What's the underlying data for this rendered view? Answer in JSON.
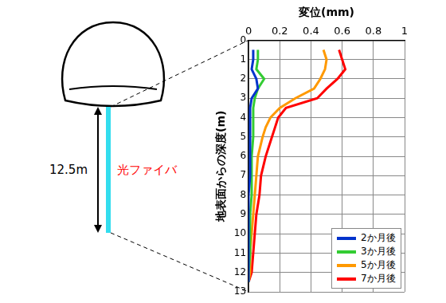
{
  "chart_data": {
    "type": "line",
    "x_label": "変位(mm)",
    "y_label": "地表面からの深度(m)",
    "y": [
      0.5,
      1,
      1.5,
      2,
      2.5,
      3,
      3.5,
      4,
      4.5,
      5,
      6,
      7,
      8,
      9,
      10,
      11,
      12,
      12.5
    ],
    "series": [
      {
        "name": "2か月後",
        "color": "#0033cc",
        "values": [
          0.03,
          0.03,
          0.02,
          0.05,
          0.06,
          0.02,
          0.01,
          0.01,
          0.01,
          0.01,
          0.01,
          0.01,
          0.0,
          0.0,
          0.0,
          0.0,
          0.0,
          0.0
        ]
      },
      {
        "name": "3か月後",
        "color": "#33cc33",
        "values": [
          0.06,
          0.06,
          0.05,
          0.1,
          0.06,
          0.04,
          0.03,
          0.03,
          0.03,
          0.03,
          0.02,
          0.02,
          0.02,
          0.01,
          0.01,
          0.01,
          0.0,
          0.0
        ]
      },
      {
        "name": "5か月後",
        "color": "#ff9900",
        "values": [
          0.48,
          0.5,
          0.49,
          0.46,
          0.42,
          0.3,
          0.2,
          0.14,
          0.11,
          0.09,
          0.06,
          0.05,
          0.04,
          0.03,
          0.02,
          0.01,
          0.01,
          0.0
        ]
      },
      {
        "name": "7か月後",
        "color": "#ff0000",
        "values": [
          0.58,
          0.6,
          0.62,
          0.57,
          0.5,
          0.44,
          0.24,
          0.19,
          0.17,
          0.15,
          0.11,
          0.08,
          0.07,
          0.05,
          0.04,
          0.03,
          0.02,
          0.0
        ]
      }
    ],
    "xlim": [
      0,
      1
    ],
    "xticks": [
      0,
      0.2,
      0.4,
      0.6,
      0.8,
      1
    ],
    "ylim": [
      0,
      13
    ],
    "yticks": [
      0,
      1,
      2,
      3,
      4,
      5,
      6,
      7,
      8,
      9,
      10,
      11,
      12,
      13
    ],
    "grid": true,
    "legend": "lower right"
  },
  "diagram": {
    "length_label": "12.5m",
    "fiber_label": "光ファイバ"
  }
}
